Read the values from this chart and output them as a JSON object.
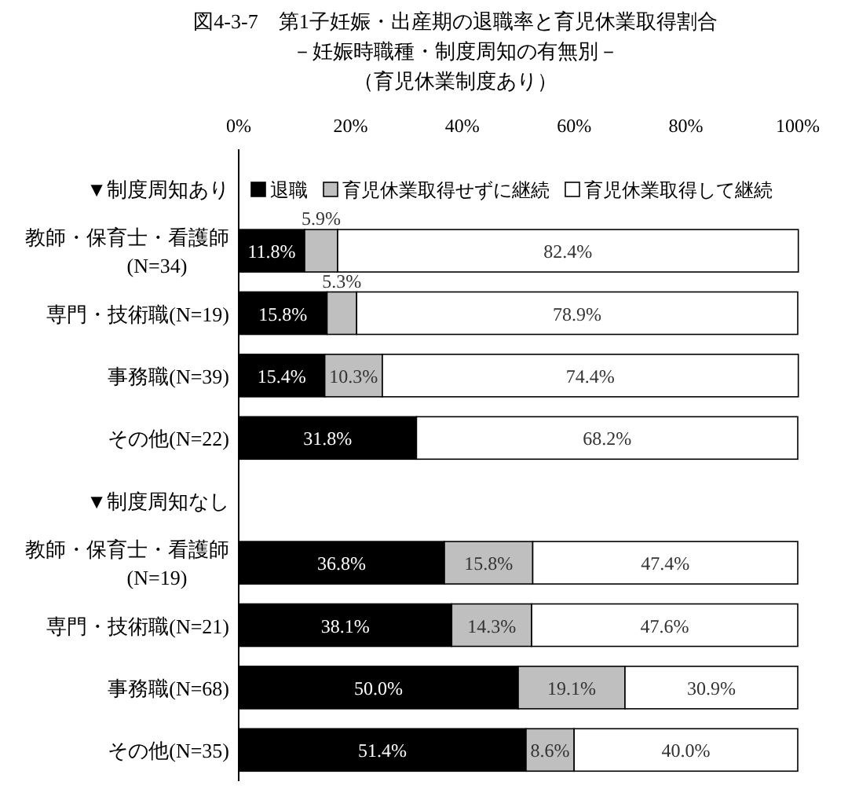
{
  "chart_data": {
    "type": "bar",
    "orientation": "horizontal",
    "stacked": true,
    "title": "図4-3-7　第1子妊娠・出産期の退職率と育児休業取得割合",
    "subtitle": "－妊娠時職種・制度周知の有無別－",
    "annotations": [
      "（育児休業制度あり）"
    ],
    "categories": [
      "▼制度周知あり",
      "教師・保育士・看護師\n(N=34)",
      "専門・技術職(N=19)",
      "事務職(N=39)",
      "その他(N=22)",
      "▼制度周知なし",
      "教師・保育士・看護師\n(N=19)",
      "専門・技術職(N=21)",
      "事務職(N=68)",
      "その他(N=35)"
    ],
    "series": [
      {
        "name": "退職",
        "color": "#000000",
        "values": [
          null,
          11.8,
          15.8,
          15.4,
          31.8,
          null,
          36.8,
          38.1,
          50.0,
          51.4
        ],
        "value_labels": [
          null,
          "11.8%",
          "15.8%",
          "15.4%",
          "31.8%",
          null,
          "36.8%",
          "38.1%",
          "50.0%",
          "51.4%"
        ]
      },
      {
        "name": "育児休業取得せずに継続",
        "color": "#bfbfbf",
        "values": [
          null,
          5.9,
          5.3,
          10.3,
          null,
          null,
          15.8,
          14.3,
          19.1,
          8.6
        ],
        "value_labels": [
          null,
          "5.9%",
          "5.3%",
          "10.3%",
          null,
          null,
          "15.8%",
          "14.3%",
          "19.1%",
          "8.6%"
        ]
      },
      {
        "name": "育児休業取得して継続",
        "color": "#ffffff",
        "values": [
          null,
          82.4,
          78.9,
          74.4,
          68.2,
          null,
          47.4,
          47.6,
          30.9,
          40.0
        ],
        "value_labels": [
          null,
          "82.4%",
          "78.9%",
          "74.4%",
          "68.2%",
          null,
          "47.4%",
          "47.6%",
          "30.9%",
          "40.0%"
        ]
      }
    ],
    "xlim": [
      0,
      100
    ],
    "xticks": [
      {
        "value": 0,
        "label": "0%"
      },
      {
        "value": 20,
        "label": "20%"
      },
      {
        "value": 40,
        "label": "40%"
      },
      {
        "value": 60,
        "label": "60%"
      },
      {
        "value": 80,
        "label": "80%"
      },
      {
        "value": 100,
        "label": "100%"
      }
    ],
    "legend": "top",
    "grid": false
  }
}
